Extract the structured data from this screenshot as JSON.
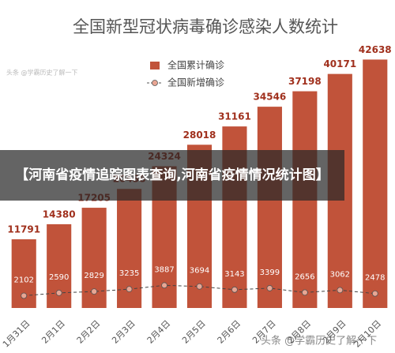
{
  "chart_data": {
    "type": "bar_line",
    "title": "全国新型冠状病毒确诊感染人数统计",
    "categories": [
      "1月31日",
      "2月1日",
      "2月2日",
      "2月3日",
      "2月4日",
      "2月5日",
      "2月6日",
      "2月7日",
      "2月8日",
      "2月9日",
      "2月10日"
    ],
    "series": [
      {
        "name": "全国累计确诊",
        "type": "bar",
        "color": "#c1533a",
        "values": [
          11791,
          14380,
          17205,
          20438,
          24324,
          28018,
          31161,
          34546,
          37198,
          40171,
          42638
        ]
      },
      {
        "name": "全国新增确诊",
        "type": "line",
        "color": "#e8a593",
        "values": [
          2102,
          2590,
          2829,
          3235,
          3887,
          3694,
          3143,
          3399,
          2656,
          3062,
          2478
        ]
      }
    ],
    "ylim": [
      0,
      45000
    ],
    "grid": false,
    "legend": "top"
  },
  "overlay": {
    "banner": "【河南省疫情追踪图表查询,河南省疫情情况统计图】",
    "watermarks": [
      "头条 @学霸历史了解一下",
      "头条 @学霸历史了解一下"
    ]
  }
}
